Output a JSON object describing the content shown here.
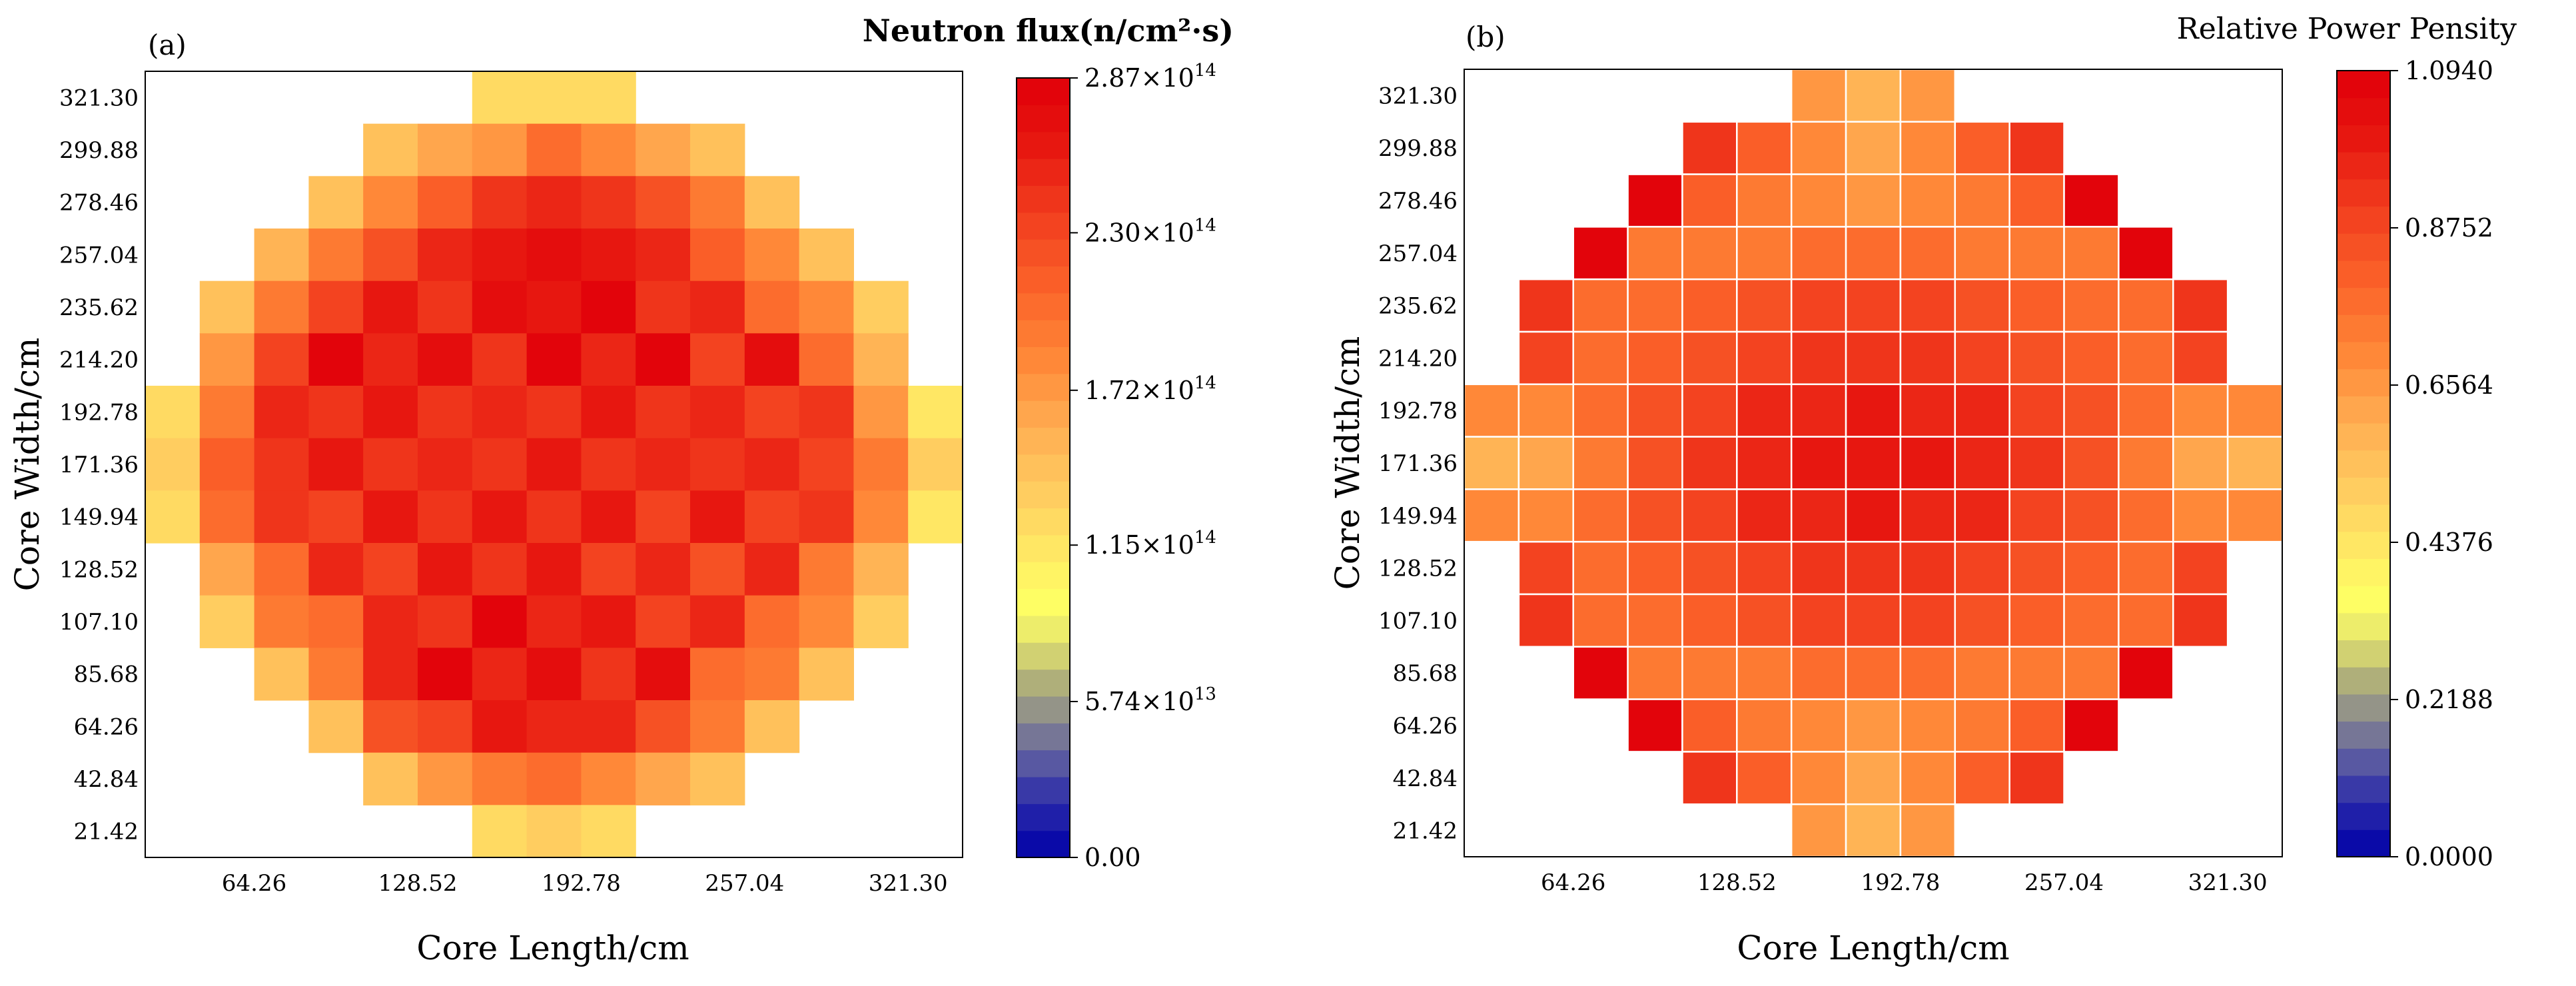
{
  "chart_data": [
    {
      "type": "heatmap",
      "panel_label": "(a)",
      "title": "Neutron flux(n/cm²·s)",
      "xlabel": "Core Length/cm",
      "ylabel": "Core Width/cm",
      "xticks": [
        "64.26",
        "128.52",
        "192.78",
        "257.04",
        "321.30"
      ],
      "yticks": [
        "21.42",
        "42.84",
        "64.26",
        "85.68",
        "107.10",
        "128.52",
        "149.94",
        "171.36",
        "192.78",
        "214.20",
        "235.62",
        "257.04",
        "278.46",
        "299.88",
        "321.30"
      ],
      "colorbar": {
        "min": 0,
        "max": 287000000000000.0,
        "ticks": [
          {
            "value": 0,
            "label": "0.00"
          },
          {
            "value": 57400000000000.0,
            "label": "5.74×10",
            "exp": "13"
          },
          {
            "value": 115000000000000.0,
            "label": "1.15×10",
            "exp": "14"
          },
          {
            "value": 172000000000000.0,
            "label": "1.72×10",
            "exp": "14"
          },
          {
            "value": 230000000000000.0,
            "label": "2.30×10",
            "exp": "14"
          },
          {
            "value": 287000000000000.0,
            "label": "2.87×10",
            "exp": "14"
          }
        ]
      },
      "grid_rows": 15,
      "grid_cols": 15,
      "grid_lines": false,
      "values_unit": "1e14 n/cm²·s",
      "values": [
        [
          null,
          null,
          null,
          null,
          null,
          null,
          1.22,
          1.28,
          1.22,
          null,
          null,
          null,
          null,
          null,
          null
        ],
        [
          null,
          null,
          null,
          null,
          1.4,
          1.65,
          1.78,
          2.0,
          1.8,
          1.65,
          1.4,
          null,
          null,
          null,
          null
        ],
        [
          null,
          null,
          null,
          1.45,
          1.88,
          2.15,
          2.4,
          2.55,
          2.45,
          2.2,
          1.9,
          1.45,
          null,
          null,
          null
        ],
        [
          null,
          null,
          1.5,
          1.9,
          2.25,
          2.5,
          2.62,
          2.72,
          2.6,
          2.55,
          2.15,
          1.85,
          1.45,
          null,
          null
        ],
        [
          null,
          1.42,
          1.95,
          2.3,
          2.62,
          2.45,
          2.75,
          2.6,
          2.8,
          2.45,
          2.5,
          2.05,
          1.8,
          1.3,
          null
        ],
        [
          null,
          1.75,
          2.35,
          2.8,
          2.55,
          2.75,
          2.4,
          2.8,
          2.5,
          2.8,
          2.3,
          2.75,
          2.0,
          1.55,
          null
        ],
        [
          1.22,
          1.95,
          2.5,
          2.4,
          2.65,
          2.4,
          2.55,
          2.45,
          2.58,
          2.4,
          2.5,
          2.3,
          2.4,
          1.75,
          1.15
        ],
        [
          1.3,
          2.1,
          2.4,
          2.6,
          2.45,
          2.55,
          2.45,
          2.58,
          2.4,
          2.55,
          2.45,
          2.55,
          2.3,
          1.9,
          1.38
        ],
        [
          1.2,
          2.0,
          2.45,
          2.35,
          2.65,
          2.4,
          2.6,
          2.45,
          2.58,
          2.3,
          2.6,
          2.3,
          2.45,
          1.8,
          1.1
        ],
        [
          null,
          1.6,
          2.05,
          2.5,
          2.3,
          2.6,
          2.4,
          2.62,
          2.35,
          2.5,
          2.2,
          2.55,
          1.9,
          1.55,
          null
        ],
        [
          null,
          1.35,
          1.95,
          2.05,
          2.5,
          2.4,
          2.8,
          2.55,
          2.62,
          2.35,
          2.5,
          2.05,
          1.85,
          1.3,
          null
        ],
        [
          null,
          null,
          1.45,
          1.95,
          2.5,
          2.8,
          2.55,
          2.75,
          2.45,
          2.7,
          2.05,
          1.9,
          1.4,
          null,
          null
        ],
        [
          null,
          null,
          null,
          1.45,
          2.2,
          2.35,
          2.65,
          2.5,
          2.55,
          2.2,
          1.9,
          1.45,
          null,
          null,
          null
        ],
        [
          null,
          null,
          null,
          null,
          1.4,
          1.75,
          1.9,
          2.05,
          1.8,
          1.6,
          1.4,
          null,
          null,
          null,
          null
        ],
        [
          null,
          null,
          null,
          null,
          null,
          null,
          1.2,
          1.3,
          1.2,
          null,
          null,
          null,
          null,
          null,
          null
        ]
      ]
    },
    {
      "type": "heatmap",
      "panel_label": "(b)",
      "title": "Relative Power Pensity",
      "xlabel": "Core Length/cm",
      "ylabel": "Core Width/cm",
      "xticks": [
        "64.26",
        "128.52",
        "192.78",
        "257.04",
        "321.30"
      ],
      "yticks": [
        "21.42",
        "42.84",
        "64.26",
        "85.68",
        "107.10",
        "128.52",
        "149.94",
        "171.36",
        "192.78",
        "214.20",
        "235.62",
        "257.04",
        "278.46",
        "299.88",
        "321.30"
      ],
      "colorbar": {
        "min": 0,
        "max": 1.094,
        "ticks": [
          {
            "value": 0,
            "label": "0.0000"
          },
          {
            "value": 0.2188,
            "label": "0.2188"
          },
          {
            "value": 0.4376,
            "label": "0.4376"
          },
          {
            "value": 0.6564,
            "label": "0.6564"
          },
          {
            "value": 0.8752,
            "label": "0.8752"
          },
          {
            "value": 1.094,
            "label": "1.0940"
          }
        ]
      },
      "grid_rows": 15,
      "grid_cols": 15,
      "grid_lines": true,
      "values": [
        [
          null,
          null,
          null,
          null,
          null,
          null,
          0.66,
          0.58,
          0.66,
          null,
          null,
          null,
          null,
          null,
          null
        ],
        [
          null,
          null,
          null,
          null,
          0.93,
          0.82,
          0.7,
          0.62,
          0.7,
          0.82,
          0.93,
          null,
          null,
          null,
          null
        ],
        [
          null,
          null,
          null,
          1.09,
          0.8,
          0.73,
          0.68,
          0.65,
          0.68,
          0.73,
          0.8,
          1.09,
          null,
          null,
          null
        ],
        [
          null,
          null,
          1.07,
          0.72,
          0.74,
          0.75,
          0.76,
          0.77,
          0.76,
          0.75,
          0.74,
          0.72,
          1.07,
          null,
          null
        ],
        [
          null,
          0.92,
          0.78,
          0.76,
          0.8,
          0.84,
          0.87,
          0.88,
          0.87,
          0.84,
          0.8,
          0.76,
          0.78,
          0.92,
          null
        ],
        [
          null,
          0.88,
          0.76,
          0.8,
          0.86,
          0.9,
          0.93,
          0.94,
          0.93,
          0.9,
          0.86,
          0.8,
          0.76,
          0.88,
          null
        ],
        [
          0.68,
          0.7,
          0.76,
          0.84,
          0.9,
          0.95,
          0.98,
          0.99,
          0.98,
          0.95,
          0.9,
          0.84,
          0.76,
          0.7,
          0.68
        ],
        [
          0.58,
          0.64,
          0.75,
          0.85,
          0.92,
          0.97,
          1.0,
          1.01,
          1.0,
          0.97,
          0.92,
          0.85,
          0.75,
          0.64,
          0.58
        ],
        [
          0.68,
          0.7,
          0.76,
          0.84,
          0.9,
          0.95,
          0.98,
          0.99,
          0.98,
          0.95,
          0.9,
          0.84,
          0.76,
          0.7,
          0.68
        ],
        [
          null,
          0.88,
          0.76,
          0.8,
          0.86,
          0.9,
          0.93,
          0.94,
          0.93,
          0.9,
          0.86,
          0.8,
          0.76,
          0.88,
          null
        ],
        [
          null,
          0.92,
          0.78,
          0.76,
          0.8,
          0.84,
          0.87,
          0.88,
          0.87,
          0.84,
          0.8,
          0.76,
          0.78,
          0.92,
          null
        ],
        [
          null,
          null,
          1.07,
          0.72,
          0.74,
          0.75,
          0.76,
          0.77,
          0.76,
          0.75,
          0.74,
          0.72,
          1.07,
          null,
          null
        ],
        [
          null,
          null,
          null,
          1.09,
          0.8,
          0.73,
          0.68,
          0.65,
          0.68,
          0.73,
          0.8,
          1.09,
          null,
          null,
          null
        ],
        [
          null,
          null,
          null,
          null,
          0.93,
          0.82,
          0.7,
          0.62,
          0.7,
          0.82,
          0.93,
          null,
          null,
          null,
          null
        ],
        [
          null,
          null,
          null,
          null,
          null,
          null,
          0.66,
          0.58,
          0.66,
          null,
          null,
          null,
          null,
          null,
          null
        ]
      ]
    }
  ]
}
